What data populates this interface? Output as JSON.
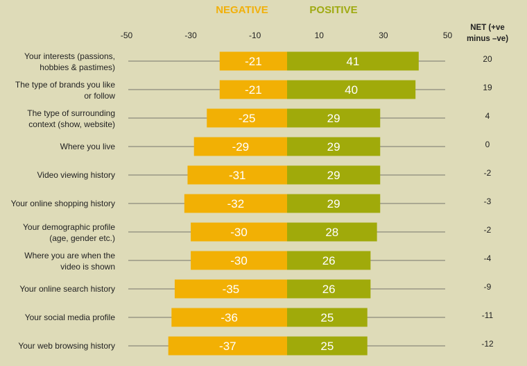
{
  "chart_data": {
    "type": "bar",
    "orientation": "horizontal-diverging",
    "legend": {
      "negative": "NEGATIVE",
      "positive": "POSITIVE"
    },
    "net_header": [
      "NET (+ve",
      "minus –ve)"
    ],
    "xlim": [
      -50,
      50
    ],
    "ticks": [
      "-50",
      "-30",
      "-10",
      "10",
      "30",
      "50"
    ],
    "colors": {
      "negative": "#f2b004",
      "positive": "#a0aa0a",
      "background": "#dedbb8"
    },
    "categories": [
      [
        "Your interests (passions,",
        "hobbies & pastimes)"
      ],
      [
        "The type of brands you like",
        "or follow"
      ],
      [
        "The type of surrounding",
        "context (show, website)"
      ],
      [
        "Where you live"
      ],
      [
        "Video viewing history"
      ],
      [
        "Your online shopping history"
      ],
      [
        "Your demographic profile",
        "(age, gender etc.)"
      ],
      [
        "Where you are when the",
        "video is shown"
      ],
      [
        "Your online search history"
      ],
      [
        "Your social media profile"
      ],
      [
        "Your web browsing history"
      ]
    ],
    "series": [
      {
        "name": "NEGATIVE",
        "values": [
          -21,
          -21,
          -25,
          -29,
          -31,
          -32,
          -30,
          -30,
          -35,
          -36,
          -37
        ]
      },
      {
        "name": "POSITIVE",
        "values": [
          41,
          40,
          29,
          29,
          29,
          29,
          28,
          26,
          26,
          25,
          25
        ]
      }
    ],
    "net": [
      "20",
      "19",
      "4",
      "0",
      "-2",
      "-3",
      "-2",
      "-4",
      "-9",
      "-11",
      "-12"
    ]
  }
}
